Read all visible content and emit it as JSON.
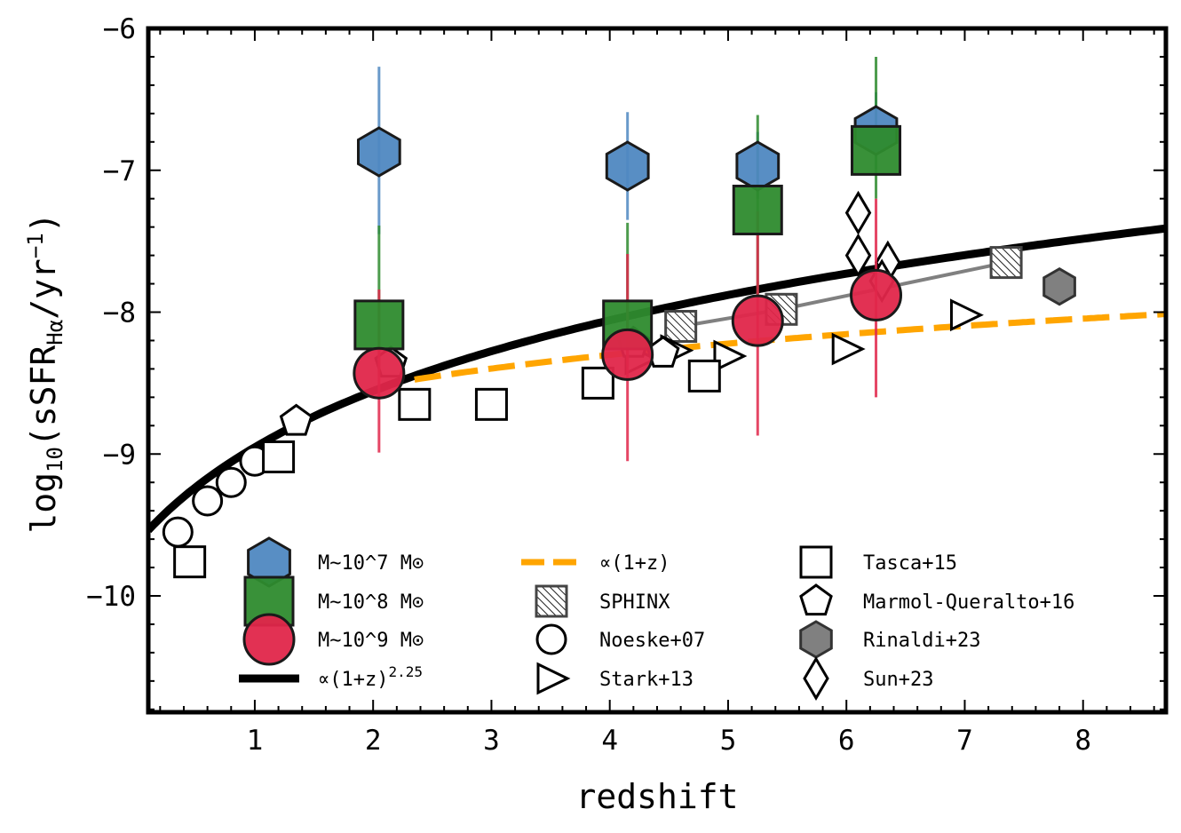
{
  "chart_data": {
    "type": "scatter",
    "xlabel": "redshift",
    "ylabel": {
      "prefix": "log",
      "sub": "10",
      "open": "(sSFR",
      "sub2": "Hα",
      "mid": "/yr",
      "sup": "−1",
      "close": ")"
    },
    "xlim": [
      0.1,
      8.7
    ],
    "ylim": [
      -10.82,
      -6.0
    ],
    "xticks": [
      1,
      2,
      3,
      4,
      5,
      6,
      7,
      8
    ],
    "yticks": [
      -10,
      -9,
      -8,
      -7,
      -6
    ],
    "ytick_labels": [
      "−10",
      "−9",
      "−8",
      "−7",
      "−6"
    ],
    "colors": {
      "blue": "#4f88c1",
      "green": "#2e8b2e",
      "red": "#e0264a",
      "orange": "#ffa500",
      "gray": "#808080"
    },
    "series": [
      {
        "name": "M~10^7 M⊙",
        "marker": "hexagon",
        "color": "#4f88c1",
        "points": [
          [
            2.05,
            -6.87,
            -6.27,
            -7.45
          ],
          [
            4.15,
            -6.97,
            -6.59,
            -7.35
          ],
          [
            5.25,
            -6.97,
            -6.73,
            -7.2
          ],
          [
            6.25,
            -6.72,
            -6.45,
            -6.99
          ]
        ]
      },
      {
        "name": "M~10^8 M⊙",
        "marker": "square",
        "color": "#2e8b2e",
        "points": [
          [
            2.05,
            -8.09,
            -7.39,
            -8.45
          ],
          [
            4.15,
            -8.09,
            -7.37,
            -8.38
          ],
          [
            5.25,
            -7.28,
            -6.61,
            -7.9
          ],
          [
            6.25,
            -6.86,
            -6.2,
            -7.2
          ]
        ]
      },
      {
        "name": "M~10^9 M⊙",
        "marker": "circle",
        "color": "#e0264a",
        "points": [
          [
            2.05,
            -8.43,
            -7.84,
            -8.99
          ],
          [
            4.15,
            -8.3,
            -7.59,
            -9.05
          ],
          [
            5.25,
            -8.06,
            -7.29,
            -8.87
          ],
          [
            6.25,
            -7.88,
            -7.2,
            -8.6
          ]
        ]
      }
    ],
    "fit_lines": [
      {
        "name": "∝(1+z)^2.25",
        "color": "#000000",
        "style": "solid",
        "x_start": 0.1,
        "x_end": 8.7,
        "amp": -9.63,
        "exp": 2.25
      },
      {
        "name": "∝(1+z)",
        "color": "#ffa500",
        "style": "dashed",
        "x_start": 2.35,
        "x_end": 8.7,
        "amp": -9.0,
        "exp": 1.0
      }
    ],
    "literature": [
      {
        "name": "SPHINX",
        "marker": "hatched-square",
        "points": [
          [
            4.6,
            -8.1
          ],
          [
            5.45,
            -7.98
          ],
          [
            7.35,
            -7.65
          ]
        ],
        "line": true
      },
      {
        "name": "Noeske+07",
        "marker": "open-circle",
        "points": [
          [
            0.35,
            -9.55
          ],
          [
            0.6,
            -9.33
          ],
          [
            0.8,
            -9.2
          ],
          [
            1.0,
            -9.05
          ]
        ]
      },
      {
        "name": "Stark+13",
        "marker": "open-triangle",
        "points": [
          [
            4.25,
            -8.33
          ],
          [
            4.55,
            -8.27
          ],
          [
            5.0,
            -8.31
          ],
          [
            6.0,
            -8.26
          ],
          [
            7.0,
            -8.02
          ]
        ]
      },
      {
        "name": "Tasca+15",
        "marker": "open-square",
        "points": [
          [
            0.45,
            -9.76
          ],
          [
            1.2,
            -9.02
          ],
          [
            2.35,
            -8.65
          ],
          [
            3.0,
            -8.65
          ],
          [
            3.9,
            -8.5
          ],
          [
            4.8,
            -8.45
          ]
        ]
      },
      {
        "name": "Marmol-Queraltο+16",
        "marker": "open-pentagon",
        "points": [
          [
            1.35,
            -8.77
          ],
          [
            2.15,
            -8.36
          ],
          [
            4.45,
            -8.29
          ],
          [
            4.2,
            -8.22
          ]
        ]
      },
      {
        "name": "Rinaldi+23",
        "marker": "gray-hexagon",
        "points": [
          [
            7.8,
            -7.82
          ]
        ]
      },
      {
        "name": "Sun+23",
        "marker": "open-diamond",
        "points": [
          [
            6.1,
            -7.3
          ],
          [
            6.1,
            -7.6
          ],
          [
            6.35,
            -7.65
          ],
          [
            6.3,
            -7.78
          ]
        ]
      }
    ],
    "legend": {
      "col1": [
        {
          "label": "M~10^7 M⊙",
          "marker": "hexagon"
        },
        {
          "label": "M~10^8 M⊙",
          "marker": "square"
        },
        {
          "label": "M~10^9 M⊙",
          "marker": "circle"
        },
        {
          "label": "∝(1+z)",
          "sup": "2.25",
          "marker": "black-line"
        }
      ],
      "col2": [
        {
          "label": "∝(1+z)",
          "marker": "orange-dash"
        },
        {
          "label": "SPHINX",
          "marker": "hatched-square"
        },
        {
          "label": "Noeske+07",
          "marker": "open-circle"
        },
        {
          "label": "Stark+13",
          "marker": "open-triangle"
        }
      ],
      "col3": [
        {
          "label": "Tasca+15",
          "marker": "open-square"
        },
        {
          "label": "Marmol-Queralto+16",
          "marker": "open-pentagon"
        },
        {
          "label": "Rinaldi+23",
          "marker": "gray-hexagon"
        },
        {
          "label": "Sun+23",
          "marker": "open-diamond"
        }
      ]
    }
  }
}
